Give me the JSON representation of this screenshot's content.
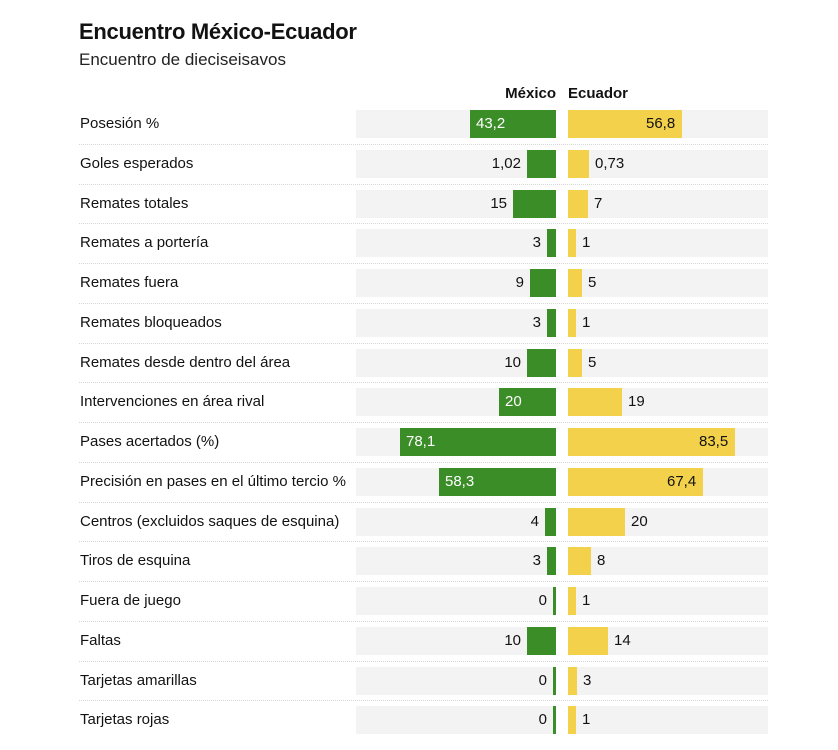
{
  "title": "Encuentro México-Ecuador",
  "subtitle": "Encuentro de dieciseisavos",
  "teams": {
    "home": "México",
    "away": "Ecuador"
  },
  "colors": {
    "home": "#3a8d27",
    "away": "#f4d14a",
    "track": "#f3f3f3"
  },
  "chart_data": {
    "type": "bar",
    "title": "Encuentro México-Ecuador",
    "subtitle": "Encuentro de dieciseisavos",
    "series": [
      {
        "name": "México",
        "values": [
          43.2,
          1.02,
          15,
          3,
          9,
          3,
          10,
          20,
          78.1,
          58.3,
          4,
          3,
          0,
          10,
          0,
          0
        ]
      },
      {
        "name": "Ecuador",
        "values": [
          56.8,
          0.73,
          7,
          1,
          5,
          1,
          5,
          19,
          83.5,
          67.4,
          20,
          8,
          1,
          14,
          3,
          1
        ]
      }
    ],
    "categories": [
      "Posesión %",
      "Goles esperados",
      "Remates totales",
      "Remates a portería",
      "Remates fuera",
      "Remates bloqueados",
      "Remates desde dentro del área",
      "Intervenciones en área rival",
      "Pases acertados (%)",
      "Precisión en pases en el último tercio %",
      "Centros (excluidos saques de esquina)",
      "Tiros de esquina",
      "Fuera de juego",
      "Faltas",
      "Tarjetas amarillas",
      "Tarjetas rojas"
    ],
    "display": {
      "home": [
        "43,2",
        "1,02",
        "15",
        "3",
        "9",
        "3",
        "10",
        "20",
        "78,1",
        "58,3",
        "4",
        "3",
        "0",
        "10",
        "0",
        "0"
      ],
      "away": [
        "56,8",
        "0,73",
        "7",
        "1",
        "5",
        "1",
        "5",
        "19",
        "83,5",
        "67,4",
        "20",
        "8",
        "1",
        "14",
        "3",
        "1"
      ]
    },
    "scale_max": [
      100,
      7,
      70,
      70,
      70,
      70,
      70,
      70,
      100,
      100,
      70,
      70,
      70,
      70,
      70,
      70
    ]
  }
}
